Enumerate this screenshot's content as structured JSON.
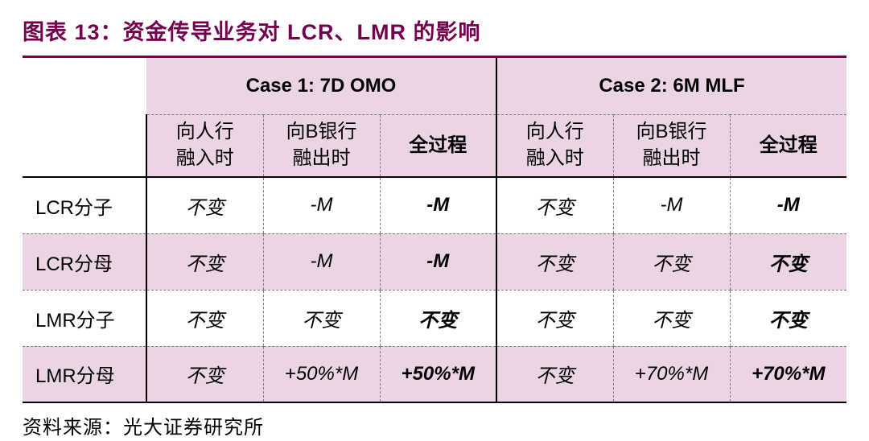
{
  "title": "图表 13：资金传导业务对 LCR、LMR 的影响",
  "source": "资料来源：光大证券研究所",
  "case1_header": "Case 1: 7D OMO",
  "case2_header": "Case 2: 6M MLF",
  "sub_headers": {
    "c1s1": "向人行\n融入时",
    "c1s2": "向B银行\n融出时",
    "c1s3": "全过程",
    "c2s1": "向人行\n融入时",
    "c2s2": "向B银行\n融出时",
    "c2s3": "全过程"
  },
  "rows": [
    {
      "label": "LCR分子",
      "c1s1": "不变",
      "c1s2": "-M",
      "c1s3": "-M",
      "c2s1": "不变",
      "c2s2": "-M",
      "c2s3": "-M"
    },
    {
      "label": "LCR分母",
      "c1s1": "不变",
      "c1s2": "-M",
      "c1s3": "-M",
      "c2s1": "不变",
      "c2s2": "不变",
      "c2s3": "不变"
    },
    {
      "label": "LMR分子",
      "c1s1": "不变",
      "c1s2": "不变",
      "c1s3": "不变",
      "c2s1": "不变",
      "c2s2": "不变",
      "c2s3": "不变"
    },
    {
      "label": "LMR分母",
      "c1s1": "不变",
      "c1s2": "+50%*M",
      "c1s3": "+50%*M",
      "c2s1": "不变",
      "c2s2": "+70%*M",
      "c2s3": "+70%*M"
    }
  ],
  "styling": {
    "title_color": "#72004f",
    "header_bg": "#ebd5e5",
    "alt_row_bg": "#ebd5e5",
    "border_solid": "#000000",
    "border_dashed": "#7d7d7d",
    "background": "#ffffff",
    "title_fontsize": 27,
    "cell_fontsize": 24,
    "source_fontsize": 24,
    "italic_data": true,
    "bold_column_index": [
      2,
      5
    ]
  }
}
